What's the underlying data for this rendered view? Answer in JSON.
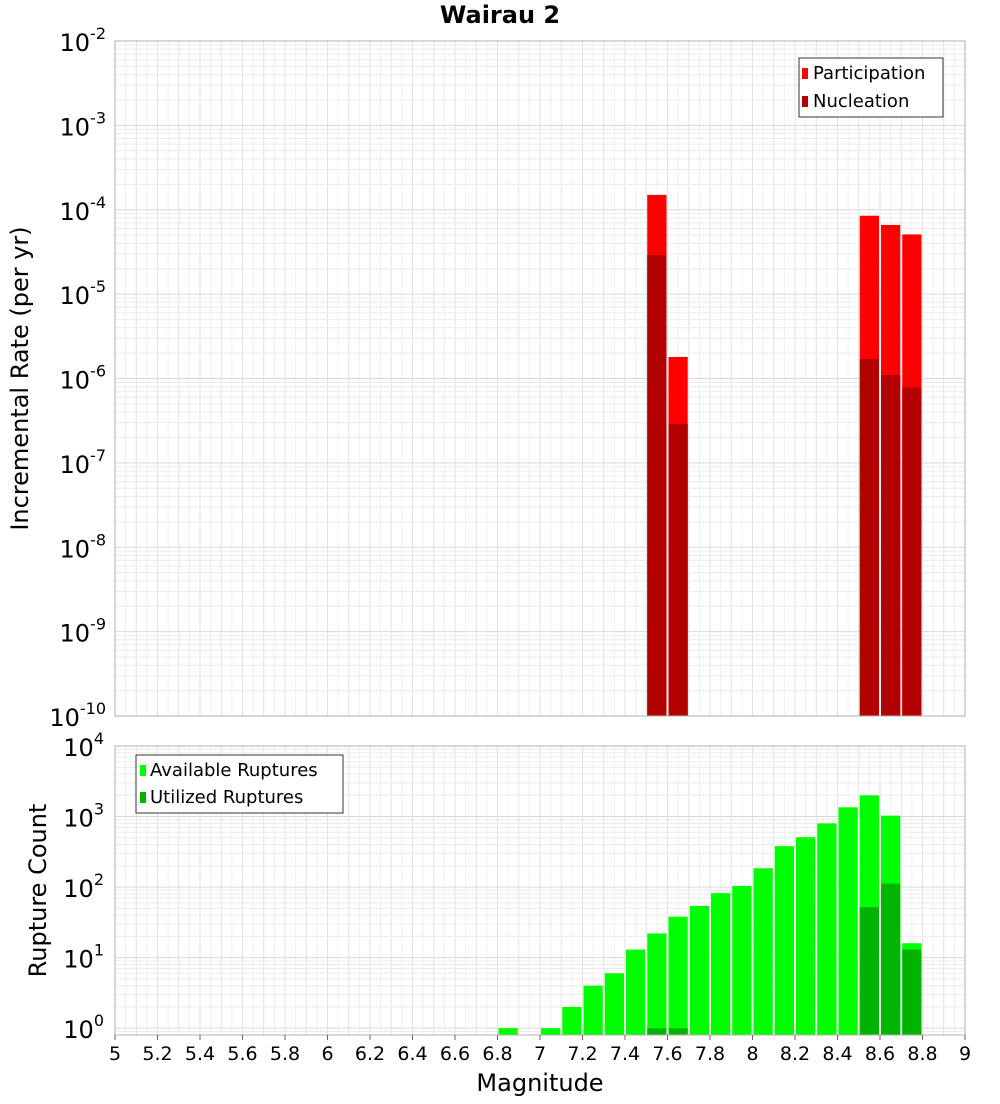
{
  "chart_data": [
    {
      "type": "bar",
      "title": "Wairau 2",
      "ylabel": "Incremental Rate (per yr)",
      "xlabel": "",
      "yscale": "log",
      "ylim": [
        1e-10,
        0.01
      ],
      "xlim": [
        5,
        9
      ],
      "bin_width": 0.1,
      "y_tick_exponents": [
        "-2",
        "-3",
        "-4",
        "-5",
        "-6",
        "-7",
        "-8",
        "-9",
        "-10"
      ],
      "y_tick_base": "10",
      "grid": true,
      "legend_position": "top-right",
      "legend": [
        "Participation",
        "Nucleation"
      ],
      "series": [
        {
          "name": "Participation",
          "color": "#ff0000",
          "points": [
            {
              "x": 7.55,
              "y": 0.00015
            },
            {
              "x": 7.65,
              "y": 1.8e-06
            },
            {
              "x": 8.55,
              "y": 8.5e-05
            },
            {
              "x": 8.65,
              "y": 6.6e-05
            },
            {
              "x": 8.75,
              "y": 5.1e-05
            }
          ]
        },
        {
          "name": "Nucleation",
          "color": "#b30000",
          "points": [
            {
              "x": 7.55,
              "y": 2.9e-05
            },
            {
              "x": 7.65,
              "y": 2.9e-07
            },
            {
              "x": 8.55,
              "y": 1.7e-06
            },
            {
              "x": 8.65,
              "y": 1.1e-06
            },
            {
              "x": 8.75,
              "y": 7.8e-07
            }
          ]
        }
      ]
    },
    {
      "type": "bar",
      "ylabel": "Rupture Count",
      "xlabel": "Magnitude",
      "yscale": "log",
      "ylim": [
        0.8,
        10000
      ],
      "xlim": [
        5,
        9
      ],
      "bin_width": 0.1,
      "y_tick_exponents": [
        "4",
        "3",
        "2",
        "1",
        "0"
      ],
      "y_tick_base": "10",
      "x_tick_labels": [
        "5",
        "5.2",
        "5.4",
        "5.6",
        "5.8",
        "6",
        "6.2",
        "6.4",
        "6.6",
        "6.8",
        "7",
        "7.2",
        "7.4",
        "7.6",
        "7.8",
        "8",
        "8.2",
        "8.4",
        "8.6",
        "8.8",
        "9"
      ],
      "grid": true,
      "legend_position": "top-left",
      "legend": [
        "Available Ruptures",
        "Utilized Ruptures"
      ],
      "series": [
        {
          "name": "Available Ruptures",
          "color": "#00ff00",
          "points": [
            {
              "x": 6.85,
              "y": 1
            },
            {
              "x": 7.05,
              "y": 1
            },
            {
              "x": 7.15,
              "y": 2
            },
            {
              "x": 7.25,
              "y": 4
            },
            {
              "x": 7.35,
              "y": 6
            },
            {
              "x": 7.45,
              "y": 13
            },
            {
              "x": 7.55,
              "y": 22
            },
            {
              "x": 7.65,
              "y": 38
            },
            {
              "x": 7.75,
              "y": 54
            },
            {
              "x": 7.85,
              "y": 82
            },
            {
              "x": 7.95,
              "y": 104
            },
            {
              "x": 8.05,
              "y": 185
            },
            {
              "x": 8.15,
              "y": 380
            },
            {
              "x": 8.25,
              "y": 510
            },
            {
              "x": 8.35,
              "y": 800
            },
            {
              "x": 8.45,
              "y": 1350
            },
            {
              "x": 8.55,
              "y": 2000
            },
            {
              "x": 8.65,
              "y": 1030
            },
            {
              "x": 8.75,
              "y": 16
            }
          ]
        },
        {
          "name": "Utilized Ruptures",
          "color": "#00b300",
          "points": [
            {
              "x": 7.55,
              "y": 1
            },
            {
              "x": 7.65,
              "y": 1
            },
            {
              "x": 8.55,
              "y": 52
            },
            {
              "x": 8.65,
              "y": 112
            },
            {
              "x": 8.75,
              "y": 13
            }
          ]
        }
      ]
    }
  ]
}
